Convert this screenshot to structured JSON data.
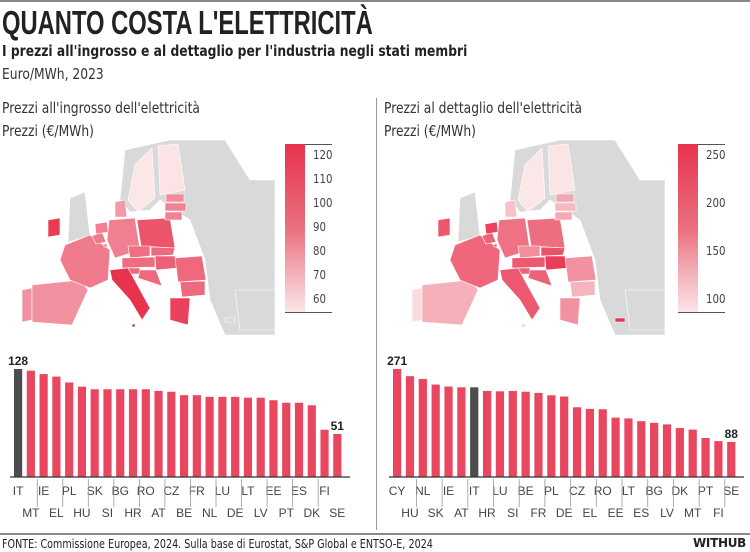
{
  "header": {
    "title": "QUANTO COSTA L'ELETTRICITÀ",
    "subtitle": "I prezzi all'ingrosso e al dettaglio per l'industria negli stati membri",
    "unit": "Euro/MWh, 2023"
  },
  "footer": {
    "source": "FONTE: Commissione Europea, 2024. Sulla base di Eurostat, S&P Global e ENTSO-E, 2024",
    "brand": "WITHUB"
  },
  "colors": {
    "bar": "#e8475f",
    "highlight": "#4d4d4d",
    "map_high": "#e8334f",
    "map_low": "#fbe6e8",
    "map_nodata": "#d9d9d9"
  },
  "chart_data": [
    {
      "type": "bar",
      "title": "Prezzi all'ingrosso dell'elettricità",
      "ylabel": "Prezzi (€/MWh)",
      "legend_ticks": [
        "120",
        "110",
        "100",
        "90",
        "80",
        "70",
        "60"
      ],
      "legend_range": [
        55,
        125
      ],
      "highlight": "IT",
      "labels_shown": {
        "first": "128",
        "last": "51"
      },
      "categories": [
        "IT",
        "MT",
        "IE",
        "EL",
        "PL",
        "HU",
        "SK",
        "SI",
        "BG",
        "HR",
        "RO",
        "AT",
        "CZ",
        "BE",
        "FR",
        "NL",
        "LU",
        "DE",
        "LT",
        "LV",
        "EE",
        "PT",
        "ES",
        "DK",
        "FI",
        "SE"
      ],
      "values": [
        128,
        126,
        122,
        119,
        112,
        107,
        104,
        104,
        104,
        104,
        104,
        102,
        101,
        97,
        97,
        95,
        95,
        95,
        94,
        94,
        91,
        88,
        88,
        85,
        56,
        51
      ]
    },
    {
      "type": "bar",
      "title": "Prezzi al dettaglio dell'elettricità",
      "ylabel": "Prezzi (€/MWh)",
      "legend_ticks": [
        "250",
        "200",
        "150",
        "100"
      ],
      "legend_range": [
        88,
        262
      ],
      "highlight": "IT",
      "labels_shown": {
        "first": "271",
        "last": "88"
      },
      "categories": [
        "CY",
        "HU",
        "NL",
        "SK",
        "IE",
        "AT",
        "IT",
        "HR",
        "LU",
        "SI",
        "BE",
        "FR",
        "PL",
        "DE",
        "CZ",
        "EL",
        "RO",
        "EE",
        "LT",
        "ES",
        "BG",
        "LV",
        "DK",
        "MT",
        "PT",
        "FI",
        "SE"
      ],
      "values": [
        271,
        253,
        246,
        232,
        227,
        225,
        225,
        216,
        215,
        216,
        214,
        211,
        205,
        202,
        175,
        171,
        170,
        149,
        147,
        140,
        136,
        132,
        123,
        119,
        98,
        90,
        88
      ]
    }
  ]
}
